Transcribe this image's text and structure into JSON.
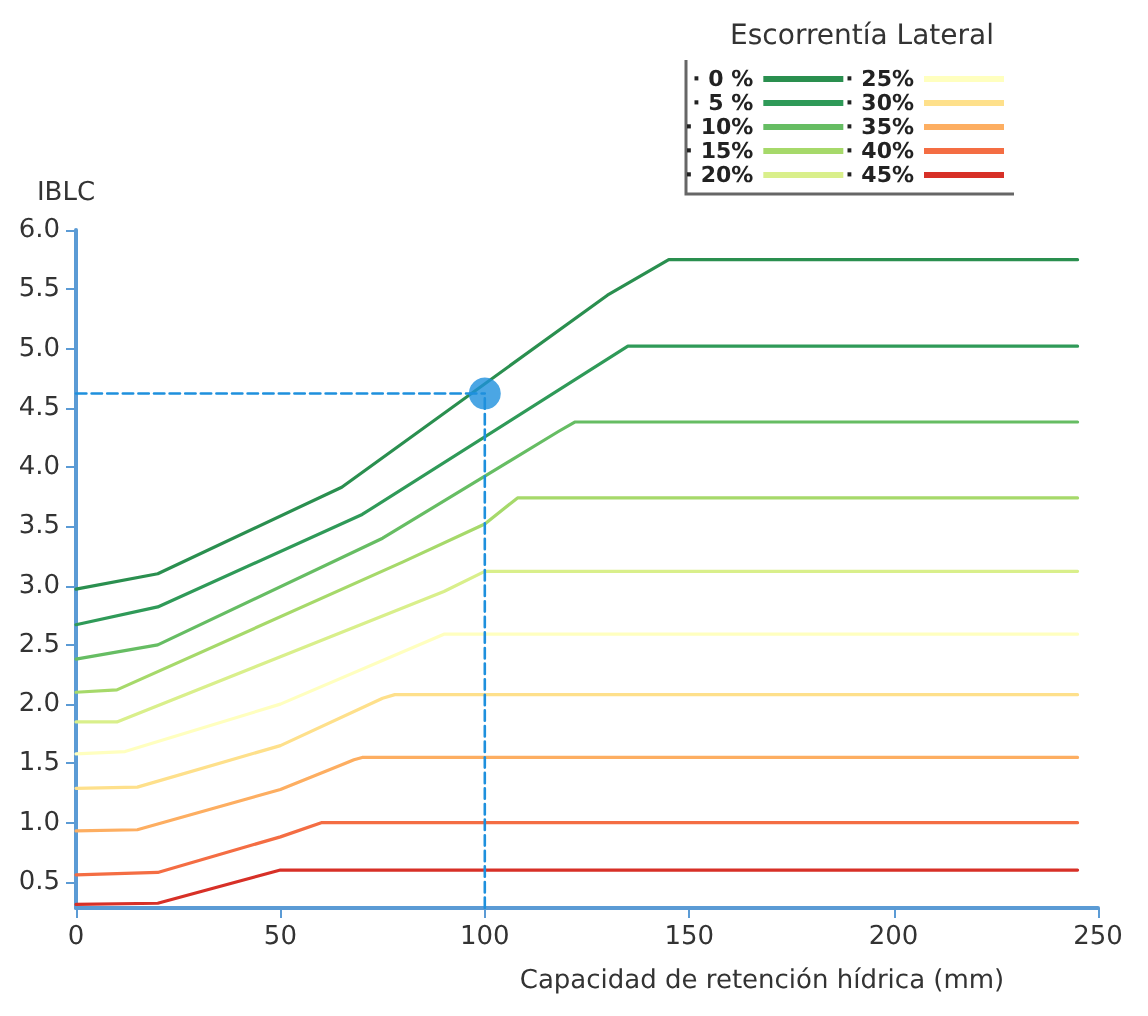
{
  "chart_data": {
    "type": "line",
    "xlabel": "Capacidad de retención hídrica (mm)",
    "ylabel": "IBLC",
    "legend_title": "Escorrentía Lateral",
    "legend": "top right",
    "grid": false,
    "marker": "none",
    "line_style": "solid",
    "xlim": [
      0,
      250
    ],
    "xticks": [
      0,
      50,
      100,
      150,
      200,
      250
    ],
    "ylim": [
      0.28,
      6.0
    ],
    "yticks": [
      {
        "value": 0.5,
        "label": "0.5"
      },
      {
        "value": 1.0,
        "label": "1.0"
      },
      {
        "value": 1.5,
        "label": "1.5"
      },
      {
        "value": 2.0,
        "label": "2.0"
      },
      {
        "value": 2.5,
        "label": "2.5"
      },
      {
        "value": 3.0,
        "label": "3.0"
      },
      {
        "value": 3.5,
        "label": "3.5"
      },
      {
        "value": 4.0,
        "label": "4.0"
      },
      {
        "value": 4.5,
        "label": "4.5"
      },
      {
        "value": 5.0,
        "label": "5.0"
      },
      {
        "value": 5.5,
        "label": "5.5"
      },
      {
        "value": 6.0,
        "label": "6.0"
      }
    ],
    "series": [
      {
        "name": "· 0 %",
        "color": "#2a8f4f",
        "x": [
          0,
          20,
          65,
          130,
          145,
          245
        ],
        "values": [
          2.97,
          3.1,
          3.83,
          5.45,
          5.75,
          5.75
        ]
      },
      {
        "name": "· 5 %",
        "color": "#2f9a58",
        "x": [
          0,
          20,
          70,
          135,
          245
        ],
        "values": [
          2.67,
          2.82,
          3.6,
          5.02,
          5.02
        ]
      },
      {
        "name": "· 10%",
        "color": "#66bd63",
        "x": [
          0,
          20,
          75,
          118,
          122,
          245
        ],
        "values": [
          2.38,
          2.5,
          3.4,
          4.3,
          4.38,
          4.38
        ]
      },
      {
        "name": "· 15%",
        "color": "#a6d96a",
        "x": [
          0,
          10,
          80,
          100,
          108,
          245
        ],
        "values": [
          2.1,
          2.12,
          3.2,
          3.52,
          3.74,
          3.74
        ]
      },
      {
        "name": "· 20%",
        "color": "#d9ef8b",
        "x": [
          0,
          10,
          50,
          90,
          100,
          245
        ],
        "values": [
          1.85,
          1.85,
          2.4,
          2.95,
          3.12,
          3.12
        ]
      },
      {
        "name": "· 25%",
        "color": "#ffffbf",
        "x": [
          0,
          12,
          50,
          90,
          245
        ],
        "values": [
          1.58,
          1.6,
          2.0,
          2.59,
          2.59
        ]
      },
      {
        "name": "· 30%",
        "color": "#fee08b",
        "x": [
          0,
          15,
          50,
          75,
          78,
          245
        ],
        "values": [
          1.29,
          1.3,
          1.65,
          2.05,
          2.08,
          2.08
        ]
      },
      {
        "name": "· 35%",
        "color": "#fdae61",
        "x": [
          0,
          15,
          50,
          68,
          70,
          245
        ],
        "values": [
          0.93,
          0.94,
          1.28,
          1.53,
          1.55,
          1.55
        ]
      },
      {
        "name": "· 40%",
        "color": "#f46d43",
        "x": [
          0,
          20,
          50,
          60,
          245
        ],
        "values": [
          0.56,
          0.58,
          0.88,
          1.0,
          1.0
        ]
      },
      {
        "name": "· 45%",
        "color": "#d73027",
        "x": [
          0,
          20,
          50,
          245
        ],
        "values": [
          0.31,
          0.32,
          0.6,
          0.6
        ]
      },
      {
        "type": "line",
        "color": "#1e90dd",
        "line_style": "dashed",
        "x": [
          0,
          100
        ],
        "values": [
          4.62,
          4.62
        ]
      },
      {
        "type": "line",
        "color": "#1e90dd",
        "line_style": "dashed",
        "x": [
          100,
          100
        ],
        "values": [
          0.28,
          4.62
        ]
      },
      {
        "type": "scatter",
        "color": "#1e90dd",
        "marker": "circle",
        "x": [
          100
        ],
        "values": [
          4.62
        ]
      }
    ]
  }
}
